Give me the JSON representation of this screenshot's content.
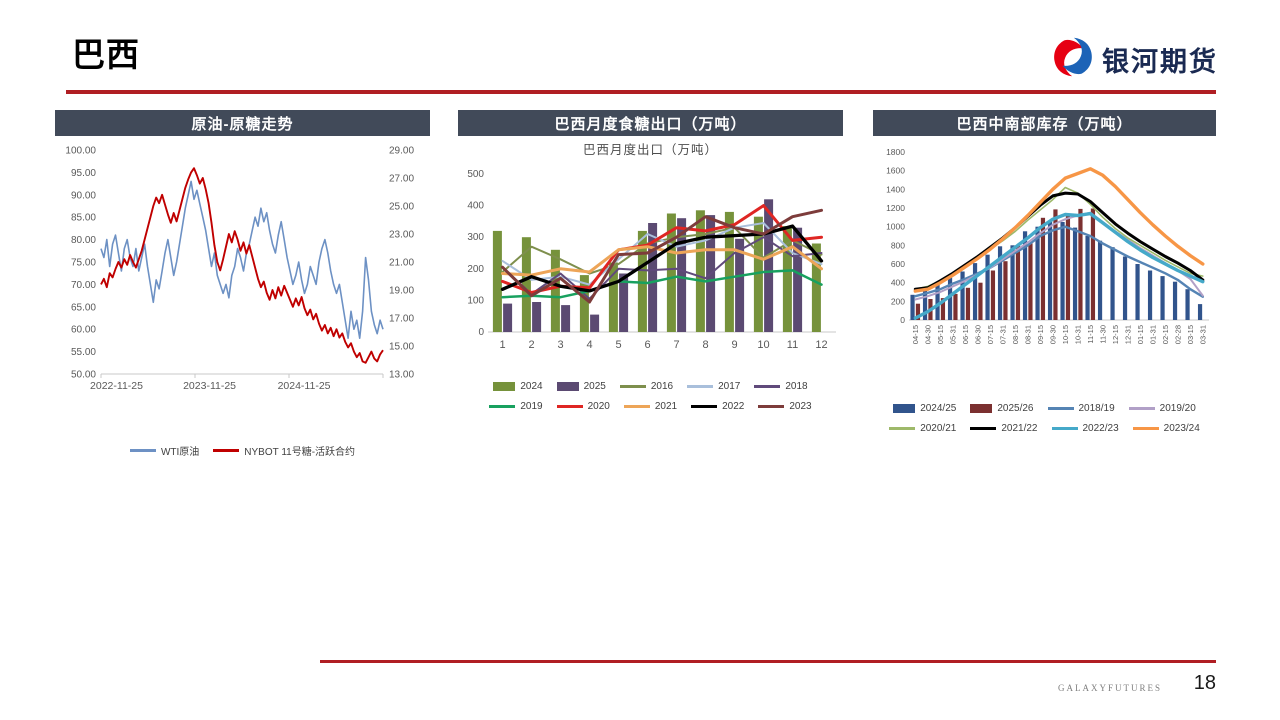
{
  "page": {
    "title": "巴西",
    "footer_brand": "GALAXYFUTURES",
    "page_number": "18",
    "accent_red": "#B01E23",
    "header_bar_color": "#414A59"
  },
  "logo": {
    "icon": "galaxy-swirl-icon",
    "text": "银河期货",
    "red": "#E60012",
    "blue": "#1C63B7",
    "text_color": "#1A2A52"
  },
  "chart_data": [
    {
      "id": "crude-oil-raw-sugar-trend",
      "type": "line",
      "title": "原油-原糖走势",
      "x_tick_labels": [
        "2022-11-25",
        "2023-11-25",
        "2024-11-25"
      ],
      "y_left": {
        "min": 50,
        "max": 100,
        "step": 5,
        "decimals": 2
      },
      "y_right": {
        "min": 13,
        "max": 29,
        "step": 2,
        "decimals": 2
      },
      "grid": false,
      "legend_position": "bottom",
      "series": [
        {
          "name": "WTI原油",
          "axis": "left",
          "color": "#6D91C4",
          "values": [
            78,
            76,
            80,
            74,
            79,
            81,
            77,
            73,
            78,
            80,
            76,
            74,
            78,
            73,
            76,
            79,
            74,
            70,
            66,
            71,
            69,
            73,
            77,
            80,
            76,
            72,
            75,
            79,
            83,
            87,
            90,
            93,
            89,
            91,
            88,
            85,
            82,
            78,
            74,
            77,
            72,
            70,
            68,
            70,
            67,
            72,
            74,
            78,
            76,
            73,
            77,
            79,
            82,
            85,
            83,
            87,
            84,
            86,
            82,
            79,
            77,
            81,
            84,
            80,
            76,
            73,
            70,
            72,
            75,
            71,
            68,
            70,
            74,
            72,
            70,
            75,
            78,
            80,
            77,
            73,
            70,
            68,
            70,
            66,
            62,
            58,
            64,
            60,
            62,
            58,
            64,
            76,
            71,
            64,
            61,
            59,
            62,
            60
          ]
        },
        {
          "name": "NYBOT 11号糖-活跃合约",
          "axis": "right",
          "color": "#C00000",
          "values": [
            19.4,
            19.8,
            19.2,
            20.2,
            19.9,
            20.5,
            21.0,
            20.6,
            21.2,
            20.8,
            21.5,
            21.0,
            20.6,
            21.2,
            21.8,
            22.6,
            23.4,
            24.2,
            25.0,
            25.6,
            25.2,
            25.8,
            25.1,
            24.4,
            23.8,
            24.5,
            23.9,
            24.7,
            25.5,
            26.3,
            26.9,
            27.4,
            27.7,
            27.2,
            26.6,
            27.0,
            26.2,
            25.2,
            23.8,
            22.2,
            21.0,
            20.4,
            21.2,
            22.1,
            23.0,
            22.4,
            23.2,
            22.6,
            21.8,
            22.4,
            21.6,
            22.2,
            21.4,
            20.6,
            19.8,
            19.2,
            19.6,
            18.8,
            18.3,
            19.0,
            18.4,
            19.2,
            18.6,
            19.3,
            18.8,
            18.3,
            17.8,
            18.4,
            17.9,
            18.5,
            17.7,
            17.2,
            17.6,
            16.9,
            17.3,
            16.6,
            16.1,
            16.5,
            15.9,
            16.3,
            15.7,
            16.2,
            15.6,
            15.9,
            15.3,
            14.9,
            15.2,
            14.6,
            14.2,
            14.5,
            13.9,
            13.8,
            14.2,
            14.6,
            14.1,
            13.9,
            14.4,
            14.7
          ]
        }
      ]
    },
    {
      "id": "brazil-monthly-sugar-export",
      "type": "combo",
      "title": "巴西月度食糖出口（万吨）",
      "subtitle": "巴西月度出口（万吨）",
      "categories": [
        "1",
        "2",
        "3",
        "4",
        "5",
        "6",
        "7",
        "8",
        "9",
        "10",
        "11",
        "12"
      ],
      "ylim": [
        0,
        500
      ],
      "y_step": 100,
      "grid": false,
      "legend_position": "bottom",
      "bars": [
        {
          "name": "2024",
          "color": "#76923B",
          "values": [
            320,
            300,
            260,
            180,
            220,
            320,
            375,
            385,
            380,
            365,
            335,
            280
          ]
        },
        {
          "name": "2025",
          "color": "#5B4A72",
          "values": [
            90,
            95,
            85,
            55,
            185,
            345,
            360,
            370,
            295,
            420,
            330,
            null
          ]
        }
      ],
      "lines": [
        {
          "name": "2016",
          "color": "#7E8F4D",
          "values": [
            190,
            270,
            230,
            185,
            215,
            280,
            300,
            310,
            330,
            235,
            290,
            245
          ]
        },
        {
          "name": "2017",
          "color": "#A9BFDB",
          "values": [
            225,
            165,
            175,
            150,
            230,
            310,
            270,
            290,
            330,
            345,
            250,
            215
          ]
        },
        {
          "name": "2018",
          "color": "#604A7B",
          "values": [
            205,
            120,
            185,
            105,
            200,
            195,
            200,
            170,
            250,
            300,
            240,
            250
          ]
        },
        {
          "name": "2019",
          "color": "#18A15F",
          "values": [
            110,
            115,
            110,
            130,
            160,
            155,
            175,
            160,
            175,
            190,
            195,
            150
          ]
        },
        {
          "name": "2020",
          "color": "#DF2623",
          "values": [
            160,
            125,
            145,
            140,
            260,
            275,
            330,
            320,
            340,
            400,
            290,
            300
          ]
        },
        {
          "name": "2021",
          "color": "#EDA558",
          "values": [
            185,
            180,
            200,
            190,
            260,
            270,
            250,
            260,
            260,
            230,
            270,
            200
          ]
        },
        {
          "name": "2022",
          "color": "#000000",
          "values": [
            135,
            175,
            145,
            130,
            160,
            220,
            280,
            300,
            305,
            310,
            335,
            225
          ]
        },
        {
          "name": "2023",
          "color": "#7D3C3B",
          "values": [
            205,
            115,
            170,
            95,
            245,
            250,
            300,
            365,
            330,
            310,
            365,
            385
          ]
        }
      ]
    },
    {
      "id": "brazil-center-south-inventory",
      "type": "combo",
      "title": "巴西中南部库存（万吨）",
      "categories": [
        "04-15",
        "04-30",
        "05-15",
        "05-31",
        "06-15",
        "06-30",
        "07-15",
        "07-31",
        "08-15",
        "08-31",
        "09-15",
        "09-30",
        "10-15",
        "10-31",
        "11-15",
        "11-30",
        "12-15",
        "12-31",
        "01-15",
        "01-31",
        "02-15",
        "02-28",
        "03-15",
        "03-31"
      ],
      "ylim": [
        0,
        1800
      ],
      "y_step": 200,
      "grid": false,
      "legend_position": "bottom",
      "bars": [
        {
          "name": "2024/25",
          "color": "#31548C",
          "values": [
            270,
            330,
            390,
            470,
            520,
            610,
            700,
            790,
            800,
            950,
            1000,
            1060,
            1050,
            990,
            900,
            850,
            780,
            680,
            600,
            530,
            470,
            410,
            330,
            170
          ]
        },
        {
          "name": "2025/26",
          "color": "#7B3030",
          "values": [
            175,
            225,
            235,
            280,
            345,
            400,
            530,
            630,
            800,
            820,
            1095,
            1185,
            1140,
            1190,
            1195,
            null,
            null,
            null,
            null,
            null,
            null,
            null,
            null,
            null
          ]
        }
      ],
      "lines": [
        {
          "name": "2018/19",
          "color": "#5584B4",
          "values": [
            255,
            290,
            330,
            390,
            440,
            500,
            560,
            640,
            720,
            800,
            900,
            960,
            1000,
            950,
            900,
            820,
            750,
            680,
            620,
            560,
            500,
            430,
            330,
            250
          ]
        },
        {
          "name": "2019/20",
          "color": "#B1A0C7",
          "values": [
            220,
            255,
            300,
            360,
            420,
            490,
            560,
            650,
            740,
            830,
            930,
            1020,
            1080,
            1120,
            1150,
            1050,
            950,
            860,
            770,
            690,
            610,
            530,
            440,
            260
          ]
        },
        {
          "name": "2020/21",
          "color": "#9EB96A",
          "values": [
            330,
            360,
            420,
            500,
            580,
            670,
            760,
            850,
            950,
            1070,
            1180,
            1290,
            1420,
            1360,
            1240,
            1100,
            980,
            880,
            800,
            720,
            640,
            570,
            500,
            470
          ]
        },
        {
          "name": "2021/22",
          "color": "#000000",
          "values": [
            330,
            345,
            420,
            500,
            590,
            680,
            780,
            880,
            990,
            1110,
            1230,
            1330,
            1360,
            1350,
            1270,
            1150,
            1030,
            930,
            840,
            760,
            680,
            610,
            530,
            430
          ]
        },
        {
          "name": "2022/23",
          "color": "#45A9C9",
          "values": [
            20,
            90,
            180,
            280,
            380,
            480,
            580,
            680,
            780,
            880,
            990,
            1080,
            1130,
            1120,
            1140,
            1040,
            940,
            840,
            750,
            670,
            600,
            530,
            470,
            410
          ]
        },
        {
          "name": "2023/24",
          "color": "#F79646",
          "values": [
            310,
            330,
            400,
            480,
            570,
            660,
            760,
            870,
            990,
            1120,
            1260,
            1400,
            1520,
            1570,
            1620,
            1550,
            1430,
            1290,
            1150,
            1020,
            900,
            790,
            690,
            600
          ]
        }
      ]
    }
  ]
}
